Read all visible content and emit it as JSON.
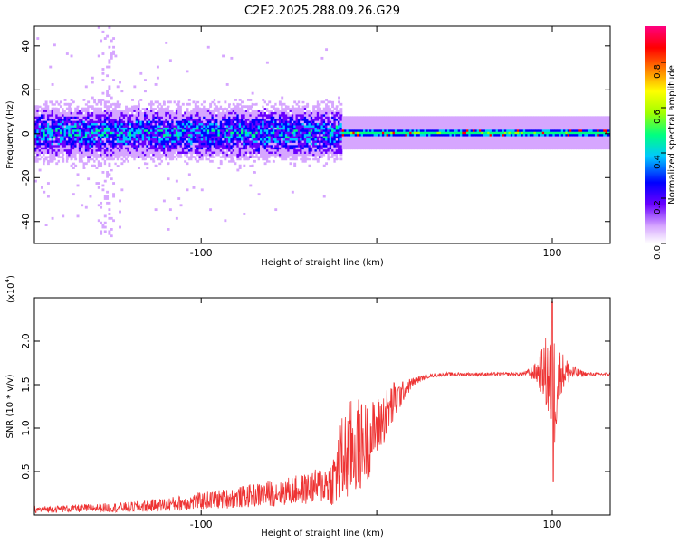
{
  "title": "C2E2.2025.288.09.26.G29",
  "chart_data": [
    {
      "type": "heatmap",
      "name": "spectrogram",
      "xlabel": "Height of straight line (km)",
      "ylabel": "Frequency (Hz)",
      "xlim": [
        -195,
        133
      ],
      "ylim": [
        -50,
        49
      ],
      "xticks": [
        -100,
        0,
        100
      ],
      "xtick_labels": [
        "-100",
        "",
        "100"
      ],
      "yticks": [
        -40,
        -20,
        0,
        20,
        40
      ],
      "ytick_labels": [
        "-40",
        "-20",
        "0",
        "20",
        "40"
      ],
      "colorbar": {
        "label": "Normalized spectral amplitude",
        "range": [
          0.0,
          0.96
        ],
        "ticks": [
          0.0,
          0.2,
          0.4,
          0.6,
          0.8
        ],
        "tick_labels": [
          "0.0",
          "0.2",
          "0.4",
          "0.6",
          "0.8"
        ],
        "colormap": [
          "#ffffff",
          "#d6a6ff",
          "#6a00ff",
          "#0000ff",
          "#00c8ff",
          "#00ff80",
          "#a0ff00",
          "#ffff00",
          "#ff8000",
          "#ff0000",
          "#ff0080"
        ]
      },
      "bands": [
        {
          "x": [
            -195,
            -20
          ],
          "freq_center": 0,
          "freq_halfwidth": 10,
          "amplitude": 0.25,
          "note": "noisy broadband region"
        },
        {
          "x": [
            -20,
            133
          ],
          "freq_center": 0,
          "freq_halfwidth": 2,
          "amplitude": 0.5,
          "note": "narrow stable tone"
        }
      ]
    },
    {
      "type": "line",
      "name": "snr",
      "xlabel": "Height of straight line (km)",
      "ylabel": "SNR (10 * v/v)",
      "multiplier_label": "(x10",
      "multiplier_exp": "4",
      "multiplier_close": ")",
      "xlim": [
        -195,
        133
      ],
      "ylim": [
        0.0,
        2.5
      ],
      "xticks": [
        -100,
        0,
        100
      ],
      "xtick_labels": [
        "-100",
        "",
        "100"
      ],
      "yticks": [
        0.5,
        1.0,
        1.5,
        2.0
      ],
      "ytick_labels": [
        "0.5",
        "1.0",
        "1.5",
        "2.0"
      ],
      "color": "#ee3333",
      "series": [
        {
          "name": "SNR",
          "x": [
            -195,
            -180,
            -160,
            -140,
            -120,
            -100,
            -80,
            -60,
            -40,
            -30,
            -25,
            -20,
            -15,
            -10,
            -5,
            0,
            5,
            10,
            15,
            20,
            25,
            30,
            40,
            50,
            60,
            70,
            80,
            85,
            90,
            95,
            98,
            100,
            102,
            105,
            110,
            115,
            120,
            125,
            133
          ],
          "y": [
            0.06,
            0.07,
            0.08,
            0.09,
            0.12,
            0.16,
            0.2,
            0.25,
            0.3,
            0.35,
            0.4,
            0.6,
            0.75,
            0.8,
            0.85,
            1.0,
            1.15,
            1.3,
            1.42,
            1.52,
            1.57,
            1.6,
            1.62,
            1.62,
            1.62,
            1.62,
            1.62,
            1.63,
            1.64,
            1.65,
            1.6,
            1.3,
            1.5,
            1.65,
            1.64,
            1.63,
            1.62,
            1.62,
            1.62
          ],
          "noise_amplitude": [
            0.04,
            0.04,
            0.05,
            0.06,
            0.08,
            0.1,
            0.12,
            0.15,
            0.18,
            0.22,
            0.3,
            0.55,
            0.6,
            0.55,
            0.45,
            0.35,
            0.3,
            0.25,
            0.12,
            0.06,
            0.03,
            0.02,
            0.02,
            0.02,
            0.02,
            0.02,
            0.02,
            0.03,
            0.1,
            0.3,
            0.6,
            0.9,
            0.6,
            0.25,
            0.12,
            0.05,
            0.02,
            0.02,
            0.02
          ]
        }
      ]
    }
  ]
}
